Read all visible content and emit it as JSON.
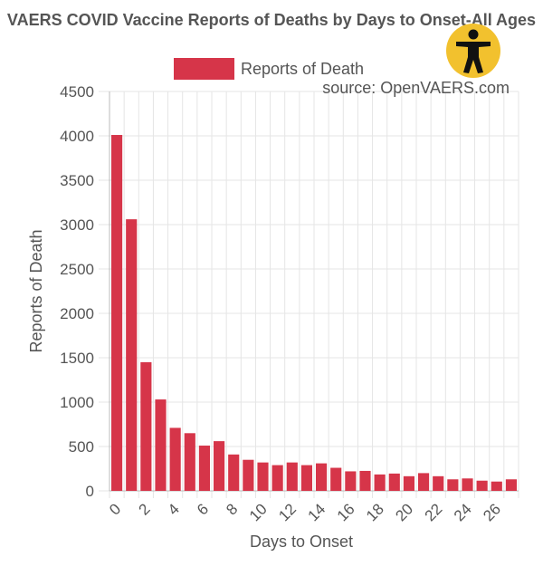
{
  "chart_data": {
    "type": "bar",
    "title": "VAERS COVID Vaccine Reports of Deaths by Days to Onset-All Ages",
    "source_note": "source: OpenVAERS.com",
    "xlabel": "Days to Onset",
    "ylabel": "Reports of Death",
    "ylim": [
      0,
      4500
    ],
    "y_ticks": [
      "0",
      "500",
      "1000",
      "1500",
      "2000",
      "2500",
      "3000",
      "3500",
      "4000",
      "4500"
    ],
    "x_tick_labels": [
      "0",
      "2",
      "4",
      "6",
      "8",
      "10",
      "12",
      "14",
      "16",
      "18",
      "20",
      "22",
      "24",
      "26"
    ],
    "categories": [
      "0",
      "1",
      "2",
      "3",
      "4",
      "5",
      "6",
      "7",
      "8",
      "9",
      "10",
      "11",
      "12",
      "13",
      "14",
      "15",
      "16",
      "17",
      "18",
      "19",
      "20",
      "21",
      "22",
      "23",
      "24",
      "25",
      "26",
      "27"
    ],
    "series": [
      {
        "name": "Reports of Death",
        "color": "#d63549",
        "values": [
          4010,
          3060,
          1450,
          1030,
          710,
          650,
          510,
          560,
          410,
          350,
          320,
          290,
          320,
          290,
          310,
          260,
          220,
          225,
          185,
          195,
          165,
          200,
          165,
          130,
          140,
          115,
          105,
          130
        ]
      }
    ],
    "grid": true,
    "legend_position": "top"
  },
  "badge_icon": "accessibility-person-icon",
  "colors": {
    "bar": "#d63549",
    "grid": "#e5e5e5",
    "axis_text": "#555555",
    "badge": "#f2c12e"
  }
}
